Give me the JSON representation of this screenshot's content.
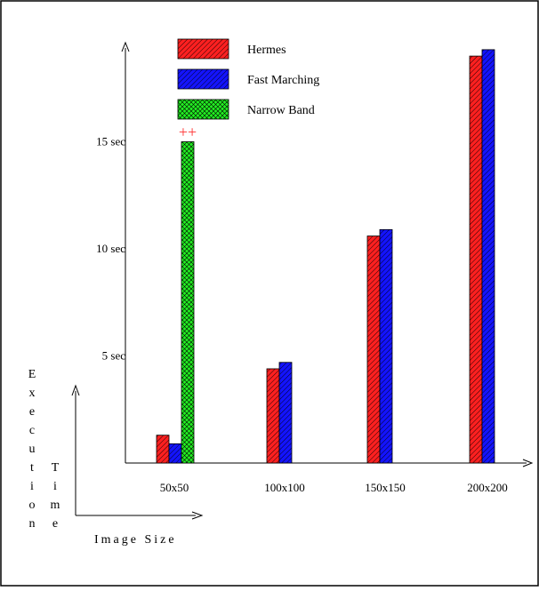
{
  "chart_data": {
    "type": "bar",
    "categories": [
      "50x50",
      "100x100",
      "150x150",
      "200x200"
    ],
    "series": [
      {
        "name": "Hermes",
        "color": "#ff2020",
        "values": [
          1.3,
          4.4,
          10.6,
          19.0
        ]
      },
      {
        "name": "Fast Marching",
        "color": "#1414ff",
        "values": [
          0.9,
          4.7,
          10.9,
          19.3
        ]
      },
      {
        "name": "Narrow Band",
        "color": "#22ee22",
        "values": [
          15.0,
          null,
          null,
          null
        ]
      }
    ],
    "yticks": [
      {
        "value": 5,
        "label": "5 sec"
      },
      {
        "value": 10,
        "label": "10 sec"
      },
      {
        "value": 15,
        "label": "15 sec"
      }
    ],
    "ylim": [
      0,
      20
    ],
    "annotation": {
      "text": "++",
      "category": "50x50",
      "series": "Narrow Band",
      "color": "#ff3030"
    },
    "ylabel_words": [
      {
        "word": "Execution",
        "letters": [
          "E",
          "x",
          "e",
          "c",
          "u",
          "t",
          "i",
          "o",
          "n"
        ]
      },
      {
        "word": "Time",
        "letters": [
          "T",
          "i",
          "m",
          "e"
        ]
      }
    ],
    "xlabel": "Image Size",
    "legend_position": "top-left",
    "grid": false
  }
}
